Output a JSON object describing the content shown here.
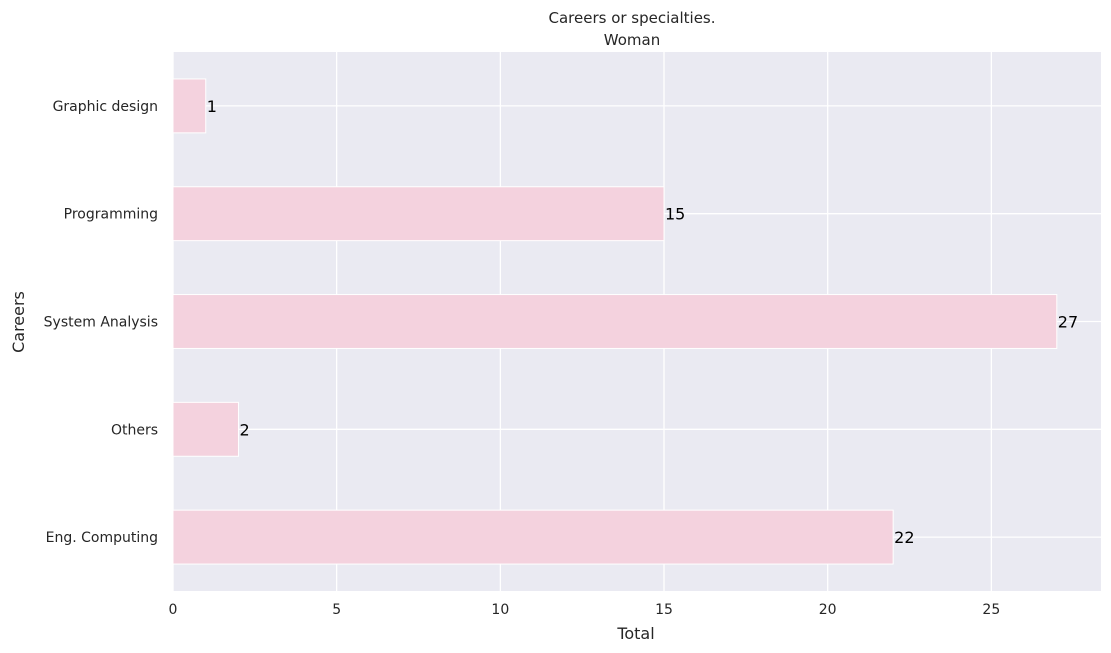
{
  "chart_data": {
    "type": "bar",
    "orientation": "horizontal",
    "title": "Careers or specialties.",
    "subtitle": "Woman",
    "xlabel": "Total",
    "ylabel": "Careers",
    "categories": [
      "Graphic design",
      "Programming",
      "System Analysis",
      "Others",
      "Eng. Computing"
    ],
    "values": [
      1,
      15,
      27,
      2,
      22
    ],
    "data_labels": [
      "1",
      "15",
      "27",
      "2",
      "22"
    ],
    "xlim": [
      0,
      28.35
    ],
    "xticks": [
      0,
      5,
      10,
      15,
      20,
      25
    ],
    "xtick_labels": [
      "0",
      "5",
      "10",
      "15",
      "20",
      "25"
    ],
    "grid": true,
    "legend": "none",
    "colors": {
      "bar_fill": "#f4d2de",
      "bar_edge": "#ffffff",
      "plot_background": "#eaeaf2",
      "grid": "#ffffff",
      "text": "#262626"
    }
  }
}
